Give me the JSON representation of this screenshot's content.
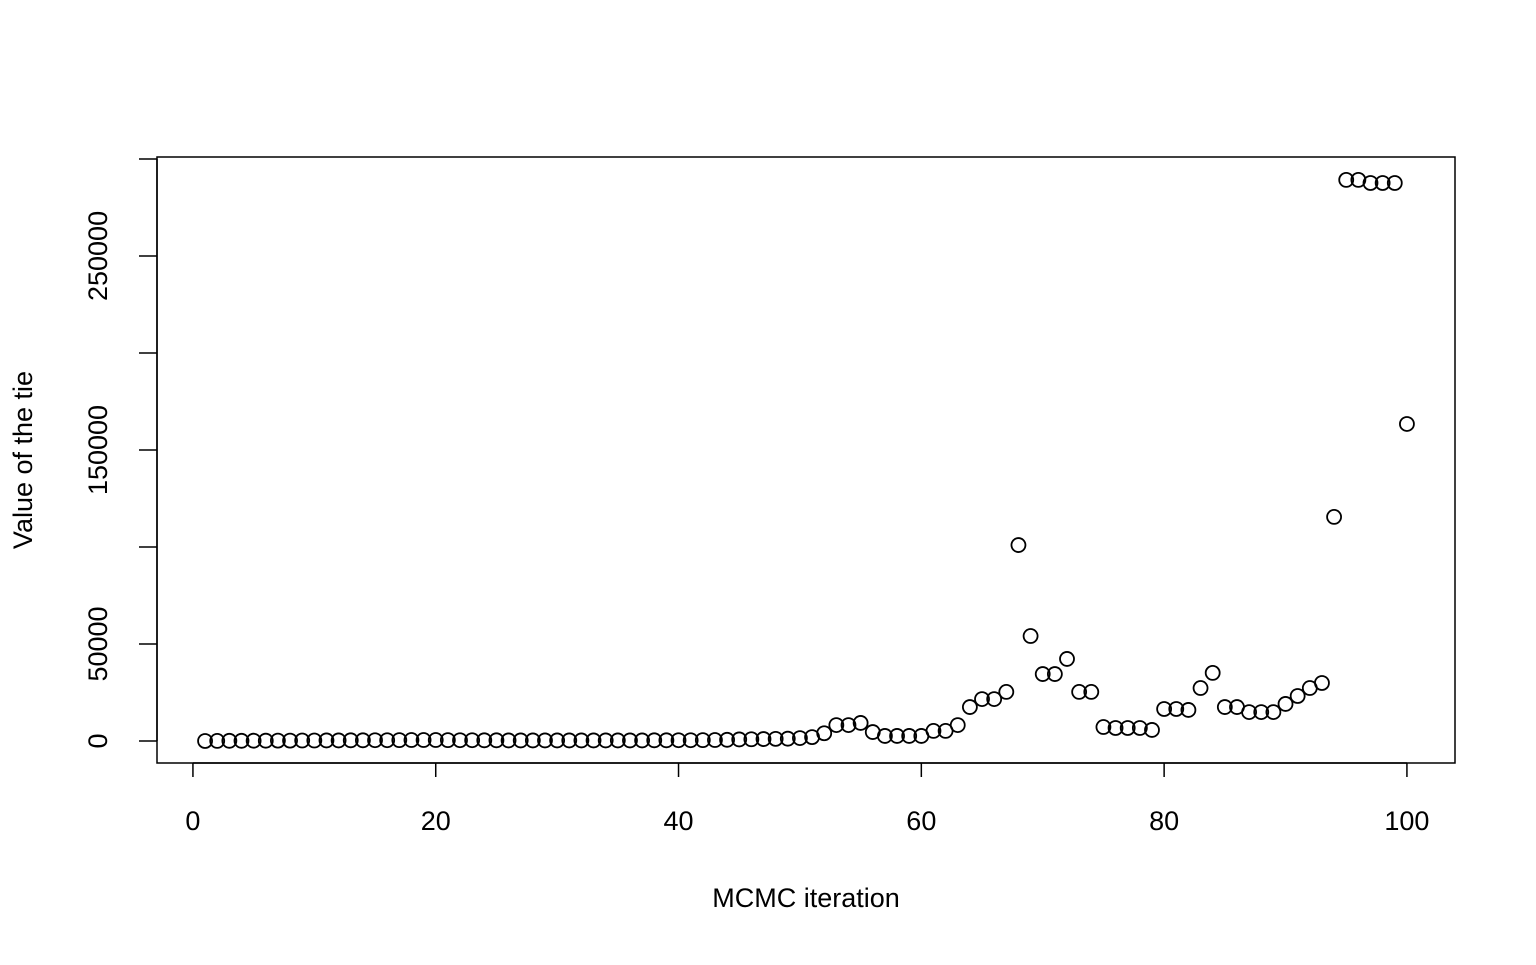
{
  "chart_data": {
    "type": "scatter",
    "x_label": "MCMC iteration",
    "y_label": "Value of the tie",
    "x": [
      1,
      2,
      3,
      4,
      5,
      6,
      7,
      8,
      9,
      10,
      11,
      12,
      13,
      14,
      15,
      16,
      17,
      18,
      19,
      20,
      21,
      22,
      23,
      24,
      25,
      26,
      27,
      28,
      29,
      30,
      31,
      32,
      33,
      34,
      35,
      36,
      37,
      38,
      39,
      40,
      41,
      42,
      43,
      44,
      45,
      46,
      47,
      48,
      49,
      50,
      51,
      52,
      53,
      54,
      55,
      56,
      57,
      58,
      59,
      60,
      61,
      62,
      63,
      64,
      65,
      66,
      67,
      68,
      69,
      70,
      71,
      72,
      73,
      74,
      75,
      76,
      77,
      78,
      79,
      80,
      81,
      82,
      83,
      84,
      85,
      86,
      87,
      88,
      89,
      90,
      91,
      92,
      93,
      94,
      95,
      96,
      97,
      98,
      99,
      100
    ],
    "values": [
      0,
      50,
      100,
      100,
      150,
      150,
      200,
      200,
      250,
      250,
      300,
      300,
      350,
      350,
      400,
      400,
      450,
      500,
      500,
      500,
      450,
      400,
      400,
      350,
      350,
      300,
      300,
      300,
      300,
      300,
      300,
      300,
      300,
      300,
      300,
      300,
      300,
      350,
      350,
      400,
      400,
      450,
      500,
      600,
      800,
      900,
      1000,
      1100,
      1200,
      1500,
      2000,
      4000,
      8200,
      8200,
      9300,
      4600,
      2600,
      2600,
      2600,
      2600,
      5200,
      5200,
      8200,
      17500,
      21600,
      21600,
      25300,
      101000,
      54100,
      34500,
      34500,
      42300,
      25300,
      25300,
      7200,
      6700,
      6700,
      6700,
      5700,
      16500,
      16500,
      16000,
      27300,
      35100,
      17500,
      17500,
      14900,
      14900,
      14900,
      19100,
      23200,
      27300,
      29900,
      115500,
      289200,
      289200,
      287600,
      287600,
      287600,
      163400
    ],
    "color": "#000000",
    "xlim": [
      -2.96,
      103.96
    ],
    "ylim": [
      -11340,
      301000
    ],
    "xticks": [
      0,
      20,
      40,
      60,
      80,
      100
    ],
    "yticks": [
      0,
      50000,
      {
        "value": 100000,
        "label": null
      },
      150000,
      {
        "value": 200000,
        "label": null
      },
      250000,
      {
        "value": 300000,
        "label": null
      }
    ]
  }
}
